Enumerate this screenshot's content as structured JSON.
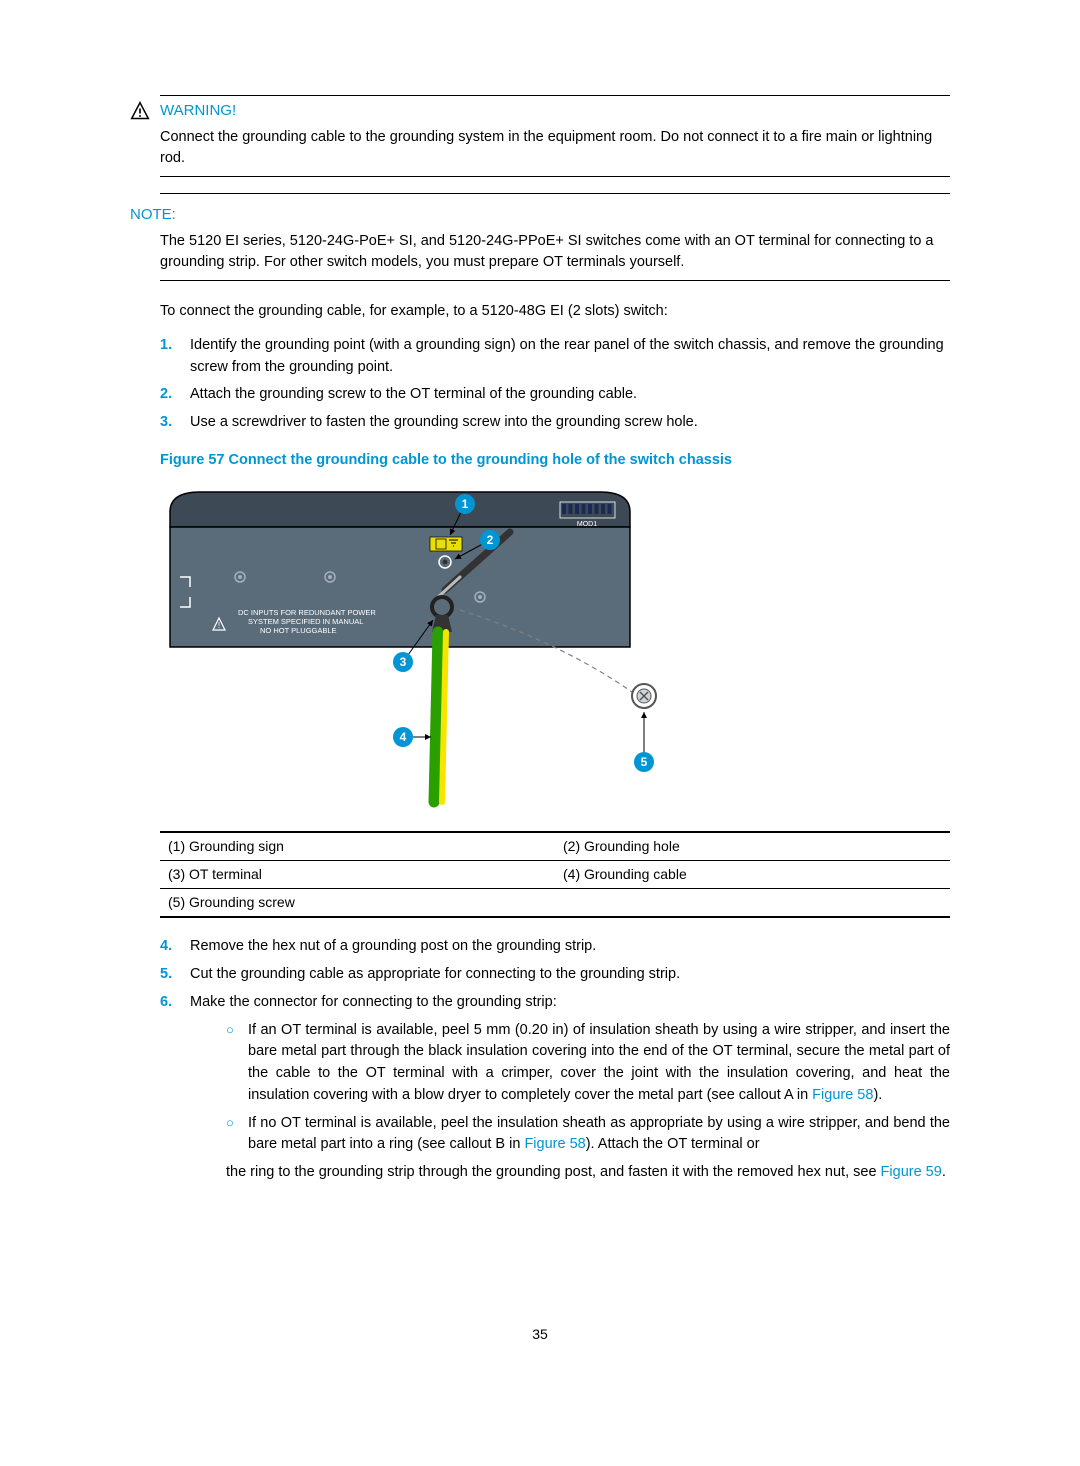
{
  "warning": {
    "label": "WARNING!",
    "text": "Connect the grounding cable to the grounding system in the equipment room. Do not connect it to a fire main or lightning rod."
  },
  "note": {
    "label": "NOTE:",
    "text": "The 5120 EI series, 5120-24G-PoE+ SI, and 5120-24G-PPoE+ SI switches come with an OT terminal for connecting to a grounding strip. For other switch models, you must prepare OT terminals yourself."
  },
  "intro": "To connect the grounding cable, for example, to a 5120-48G EI (2 slots) switch:",
  "steps1": [
    {
      "n": "1.",
      "t": "Identify the grounding point (with a grounding sign) on the rear panel of the switch chassis, and remove the grounding screw from the grounding point."
    },
    {
      "n": "2.",
      "t": "Attach the grounding screw to the OT terminal of the grounding cable."
    },
    {
      "n": "3.",
      "t": "Use a screwdriver to fasten the grounding screw into the grounding screw hole."
    }
  ],
  "figure": {
    "caption": "Figure 57 Connect the grounding cable to the grounding hole of the switch chassis",
    "svg": {
      "panel_text_top": "DC INPUTS FOR REDUNDANT POWER",
      "panel_text_mid": "SYSTEM SPECIFIED IN MANUAL",
      "panel_text_bot": "NO HOT PLUGGABLE",
      "mod_label": "MOD1",
      "callouts": [
        "1",
        "2",
        "3",
        "4",
        "5"
      ],
      "colors": {
        "chassis": "#5a6b7a",
        "chassis_top": "#3d4a56",
        "chassis_border": "#000000",
        "panel_label": "#e8de00",
        "callout_fill": "#0096d6",
        "callout_text": "#ffffff",
        "cable_outer": "#2aa000",
        "cable_inner": "#f7e500",
        "screw_line": "#808080",
        "slot_navy": "#1a2a54"
      }
    }
  },
  "legend": [
    {
      "a": "(1) Grounding sign",
      "b": "(2) Grounding hole"
    },
    {
      "a": "(3) OT terminal",
      "b": "(4) Grounding cable"
    },
    {
      "a": "(5) Grounding screw",
      "b": ""
    }
  ],
  "steps2": [
    {
      "n": "4.",
      "t": "Remove the hex nut of a grounding post on the grounding strip."
    },
    {
      "n": "5.",
      "t": "Cut the grounding cable as appropriate for connecting to the grounding strip."
    },
    {
      "n": "6.",
      "t": "Make the connector for connecting to the grounding strip:"
    }
  ],
  "sub": [
    {
      "pre": "If an OT terminal is available, peel 5 mm (0.20 in) of insulation sheath by using a wire stripper, and insert the bare metal part through the black insulation covering into the end of the OT terminal, secure the metal part of the cable to the OT terminal with a crimper, cover the joint with the insulation covering, and heat the insulation covering with a blow dryer to completely cover the metal part (see callout A in ",
      "link": "Figure 58",
      "post": ")."
    },
    {
      "pre": "If no OT terminal is available, peel the insulation sheath as appropriate by using a wire stripper, and bend the bare metal part into a ring (see callout B in ",
      "link": "Figure 58",
      "post": "). Attach the OT terminal or"
    }
  ],
  "trail": {
    "pre": "the ring to the grounding strip through the grounding post, and fasten it with the removed hex nut, see ",
    "link": "Figure 59",
    "post": "."
  },
  "page": "35"
}
